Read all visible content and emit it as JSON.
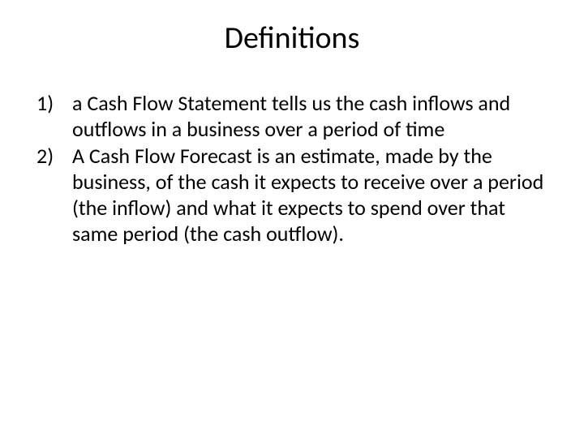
{
  "slide": {
    "title": "Definitions",
    "title_fontsize": 38,
    "body_fontsize": 26,
    "text_color": "#000000",
    "background_color": "#ffffff",
    "items": [
      {
        "text": "a Cash Flow Statement tells us the cash inflows and outflows in a business over a period of time"
      },
      {
        "text": "A Cash Flow Forecast is an estimate, made by the business, of the cash it expects to receive over a period (the inflow) and what it expects to spend over that same period (the cash outflow)."
      }
    ]
  }
}
